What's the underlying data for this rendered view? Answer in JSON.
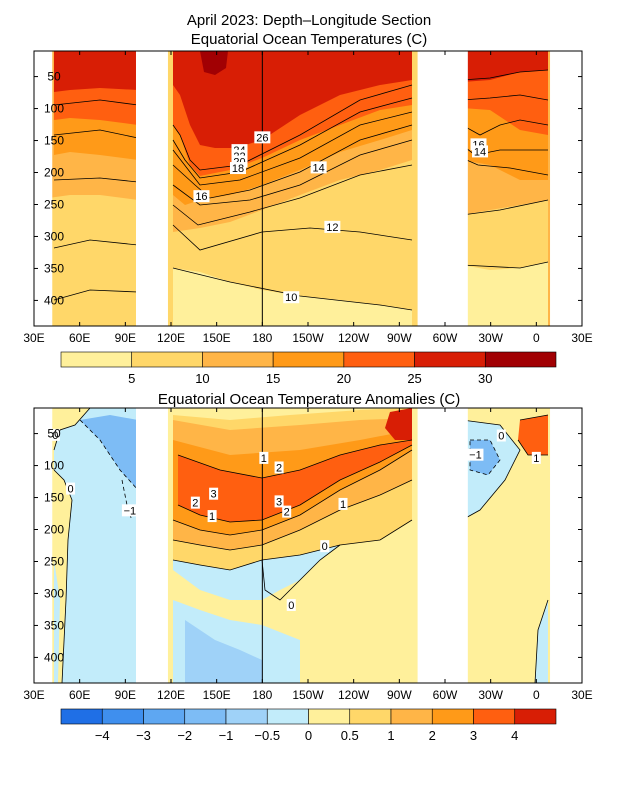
{
  "chart_data": [
    {
      "type": "heatmap",
      "title": "April 2023: Depth–Longitude Section",
      "subtitle": "Equatorial Ocean Temperatures (C)",
      "xlim": [
        30,
        390
      ],
      "x_tick_values": [
        30,
        60,
        90,
        120,
        150,
        180,
        210,
        240,
        270,
        300,
        330,
        360,
        390
      ],
      "x_tick_labels": [
        "30E",
        "60E",
        "90E",
        "120E",
        "150E",
        "180",
        "150W",
        "120W",
        "90W",
        "60W",
        "30W",
        "0",
        "30E"
      ],
      "ylim": [
        440,
        10
      ],
      "y_tick_values": [
        50,
        100,
        150,
        200,
        250,
        300,
        350,
        400
      ],
      "y_tick_labels": [
        "50",
        "100",
        "150",
        "200",
        "250",
        "300",
        "350",
        "400"
      ],
      "no_data_longitudes": [
        [
          30,
          42
        ],
        [
          97,
          118
        ],
        [
          282,
          315
        ],
        [
          369,
          390
        ]
      ],
      "reference_line_x": 180,
      "colorbar": {
        "levels": [
          "5",
          "10",
          "15",
          "20",
          "25",
          "30"
        ],
        "colors": [
          "#fff09b",
          "#ffd769",
          "#ffb547",
          "#ff9a18",
          "#ff5f10",
          "#d81e05",
          "#a10003"
        ]
      },
      "contour_labels": [
        {
          "text": "26",
          "lon": 180,
          "depth": 145
        },
        {
          "text": "24",
          "lon": 165,
          "depth": 165
        },
        {
          "text": "22",
          "lon": 165,
          "depth": 174
        },
        {
          "text": "20",
          "lon": 165,
          "depth": 183
        },
        {
          "text": "18",
          "lon": 164,
          "depth": 193
        },
        {
          "text": "16",
          "lon": 140,
          "depth": 237
        },
        {
          "text": "14",
          "lon": 217,
          "depth": 192
        },
        {
          "text": "12",
          "lon": 226,
          "depth": 285
        },
        {
          "text": "10",
          "lon": 199,
          "depth": 395
        },
        {
          "text": "16",
          "lon": 322,
          "depth": 156
        },
        {
          "text": "14",
          "lon": 323,
          "depth": 167
        }
      ]
    },
    {
      "type": "heatmap",
      "title": "Equatorial Ocean Temperature Anomalies (C)",
      "xlim": [
        30,
        390
      ],
      "x_tick_values": [
        30,
        60,
        90,
        120,
        150,
        180,
        210,
        240,
        270,
        300,
        330,
        360,
        390
      ],
      "x_tick_labels": [
        "30E",
        "60E",
        "90E",
        "120E",
        "150E",
        "180",
        "150W",
        "120W",
        "90W",
        "60W",
        "30W",
        "0",
        "30E"
      ],
      "ylim": [
        440,
        10
      ],
      "y_tick_values": [
        50,
        100,
        150,
        200,
        250,
        300,
        350,
        400
      ],
      "y_tick_labels": [
        "50",
        "100",
        "150",
        "200",
        "250",
        "300",
        "350",
        "400"
      ],
      "no_data_longitudes": [
        [
          30,
          42
        ],
        [
          97,
          118
        ],
        [
          282,
          315
        ],
        [
          369,
          390
        ]
      ],
      "reference_line_x": 180,
      "colorbar": {
        "levels": [
          "−4",
          "−3",
          "−2",
          "−1",
          "−0.5",
          "0",
          "0.5",
          "1",
          "2",
          "3",
          "4"
        ],
        "colors": [
          "#1f6fe6",
          "#3f8fee",
          "#5ea7f2",
          "#7dbcf5",
          "#9fd2f8",
          "#c2ecfa",
          "#fff09b",
          "#ffd769",
          "#ffb547",
          "#ff9a18",
          "#ff5f10",
          "#d81e05"
        ]
      },
      "contour_labels": [
        {
          "text": "0",
          "lon": 44,
          "depth": 52
        },
        {
          "text": "0",
          "lon": 54,
          "depth": 136
        },
        {
          "text": "−1",
          "lon": 93,
          "depth": 170
        },
        {
          "text": "1",
          "lon": 181,
          "depth": 88
        },
        {
          "text": "2",
          "lon": 191,
          "depth": 103
        },
        {
          "text": "3",
          "lon": 148,
          "depth": 144
        },
        {
          "text": "2",
          "lon": 136,
          "depth": 158
        },
        {
          "text": "1",
          "lon": 147,
          "depth": 179
        },
        {
          "text": "3",
          "lon": 191,
          "depth": 156
        },
        {
          "text": "2",
          "lon": 196,
          "depth": 172
        },
        {
          "text": "1",
          "lon": 233,
          "depth": 160
        },
        {
          "text": "0",
          "lon": 221,
          "depth": 226
        },
        {
          "text": "0",
          "lon": 199,
          "depth": 318
        },
        {
          "text": "0",
          "lon": 337,
          "depth": 53
        },
        {
          "text": "−1",
          "lon": 320,
          "depth": 83
        },
        {
          "text": "1",
          "lon": 360,
          "depth": 88
        }
      ]
    }
  ]
}
